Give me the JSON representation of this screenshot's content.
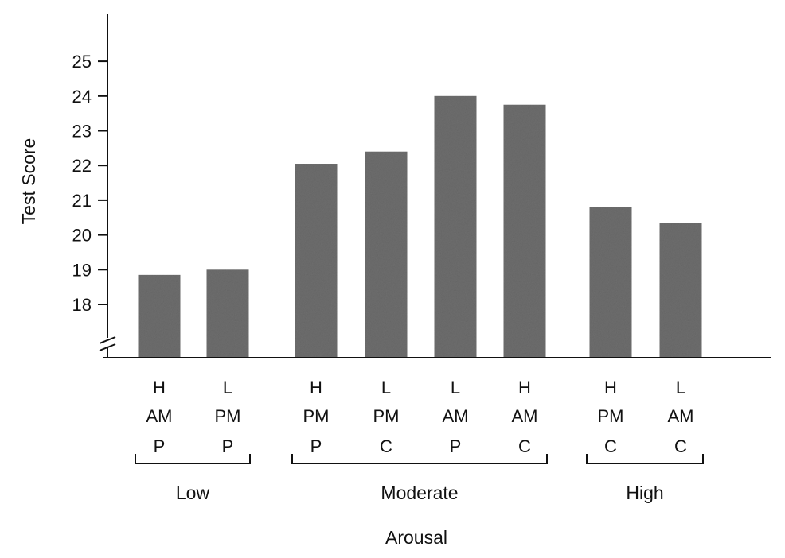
{
  "chart_data": {
    "type": "bar",
    "title": "",
    "xlabel": "Arousal",
    "ylabel": "Test Score",
    "ylim": [
      17,
      26
    ],
    "yticks": [
      18,
      19,
      20,
      21,
      22,
      23,
      24,
      25
    ],
    "axis_break": true,
    "grid": false,
    "bar_color": "#6e6e6e",
    "groups": [
      {
        "name": "Low",
        "bars": [
          {
            "lines": [
              "H",
              "AM",
              "P"
            ],
            "value": 18.85
          },
          {
            "lines": [
              "L",
              "PM",
              "P"
            ],
            "value": 19.0
          }
        ]
      },
      {
        "name": "Moderate",
        "bars": [
          {
            "lines": [
              "H",
              "PM",
              "P"
            ],
            "value": 22.05
          },
          {
            "lines": [
              "L",
              "PM",
              "C"
            ],
            "value": 22.4
          },
          {
            "lines": [
              "L",
              "AM",
              "P"
            ],
            "value": 24.0
          },
          {
            "lines": [
              "H",
              "AM",
              "C"
            ],
            "value": 23.75
          }
        ]
      },
      {
        "name": "High",
        "bars": [
          {
            "lines": [
              "H",
              "PM",
              "C"
            ],
            "value": 20.8
          },
          {
            "lines": [
              "L",
              "AM",
              "C"
            ],
            "value": 20.35
          }
        ]
      }
    ]
  }
}
